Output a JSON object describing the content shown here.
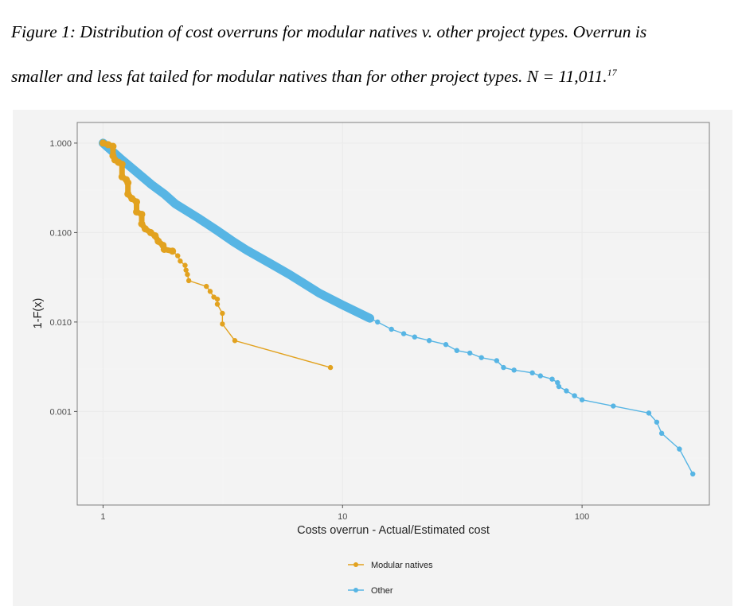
{
  "caption": {
    "line1": "Figure 1: Distribution of cost overruns for modular natives v. other project types. Overrun is",
    "line2": "smaller and less fat tailed for modular natives than for other project types. N = 11,011.",
    "footnote_ref": "17"
  },
  "chart_data": {
    "type": "line",
    "xlabel": "Costs overrun - Actual/Estimated cost",
    "ylabel": "1-F(x)",
    "x_scale": "log",
    "y_scale": "log",
    "xlim": [
      0.78,
      340
    ],
    "ylim": [
      9e-05,
      1.7
    ],
    "x_ticks": [
      1,
      10,
      100
    ],
    "x_tick_labels": [
      "1",
      "10",
      "100"
    ],
    "y_ticks": [
      1,
      0.1,
      0.01,
      0.001
    ],
    "y_tick_labels": [
      "1.000",
      "0.100",
      "0.010",
      "0.001"
    ],
    "grid": true,
    "legend_position": "bottom",
    "series": [
      {
        "name": "Modular natives",
        "color": "#e2a21f",
        "points": [
          [
            1.0,
            1.0
          ],
          [
            1.05,
            0.96
          ],
          [
            1.1,
            0.92
          ],
          [
            1.1,
            0.72
          ],
          [
            1.12,
            0.65
          ],
          [
            1.16,
            0.61
          ],
          [
            1.2,
            0.58
          ],
          [
            1.2,
            0.42
          ],
          [
            1.25,
            0.39
          ],
          [
            1.27,
            0.36
          ],
          [
            1.27,
            0.27
          ],
          [
            1.32,
            0.24
          ],
          [
            1.38,
            0.22
          ],
          [
            1.38,
            0.17
          ],
          [
            1.45,
            0.16
          ],
          [
            1.45,
            0.125
          ],
          [
            1.5,
            0.11
          ],
          [
            1.58,
            0.1
          ],
          [
            1.65,
            0.092
          ],
          [
            1.7,
            0.08
          ],
          [
            1.78,
            0.072
          ],
          [
            1.8,
            0.065
          ],
          [
            1.95,
            0.062
          ],
          [
            2.05,
            0.055
          ],
          [
            2.1,
            0.048
          ],
          [
            2.2,
            0.043
          ],
          [
            2.22,
            0.038
          ],
          [
            2.25,
            0.034
          ],
          [
            2.28,
            0.029
          ],
          [
            2.7,
            0.025
          ],
          [
            2.8,
            0.022
          ],
          [
            2.9,
            0.019
          ],
          [
            3.0,
            0.018
          ],
          [
            3.0,
            0.0158
          ],
          [
            3.15,
            0.0125
          ],
          [
            3.15,
            0.0095
          ],
          [
            3.55,
            0.0062
          ],
          [
            8.9,
            0.0031
          ]
        ]
      },
      {
        "name": "Other",
        "color": "#57b5e4",
        "points": [
          [
            1.0,
            1.0
          ],
          [
            1.2,
            0.65
          ],
          [
            1.4,
            0.46
          ],
          [
            1.6,
            0.34
          ],
          [
            1.8,
            0.27
          ],
          [
            2.0,
            0.21
          ],
          [
            2.5,
            0.145
          ],
          [
            3.0,
            0.105
          ],
          [
            3.5,
            0.079
          ],
          [
            4.0,
            0.063
          ],
          [
            5.0,
            0.045
          ],
          [
            6.0,
            0.034
          ],
          [
            8.0,
            0.021
          ],
          [
            10.0,
            0.0155
          ],
          [
            13.0,
            0.011
          ],
          [
            14.0,
            0.01
          ],
          [
            16.0,
            0.0083
          ],
          [
            18.0,
            0.0074
          ],
          [
            20.0,
            0.0068
          ],
          [
            23.0,
            0.0062
          ],
          [
            27.0,
            0.0056
          ],
          [
            30.0,
            0.0048
          ],
          [
            34.0,
            0.0045
          ],
          [
            38.0,
            0.004
          ],
          [
            44.0,
            0.0037
          ],
          [
            47.0,
            0.0031
          ],
          [
            52.0,
            0.0029
          ],
          [
            62.0,
            0.0027
          ],
          [
            67.0,
            0.0025
          ],
          [
            75.0,
            0.0023
          ],
          [
            79.0,
            0.0021
          ],
          [
            80.0,
            0.0019
          ],
          [
            86.0,
            0.0017
          ],
          [
            93.0,
            0.0015
          ],
          [
            100.0,
            0.00135
          ],
          [
            135.0,
            0.00115
          ],
          [
            190.0,
            0.00096
          ],
          [
            205.0,
            0.00076
          ],
          [
            215.0,
            0.00057
          ],
          [
            255.0,
            0.00038
          ],
          [
            290.0,
            0.0002
          ]
        ]
      }
    ]
  }
}
